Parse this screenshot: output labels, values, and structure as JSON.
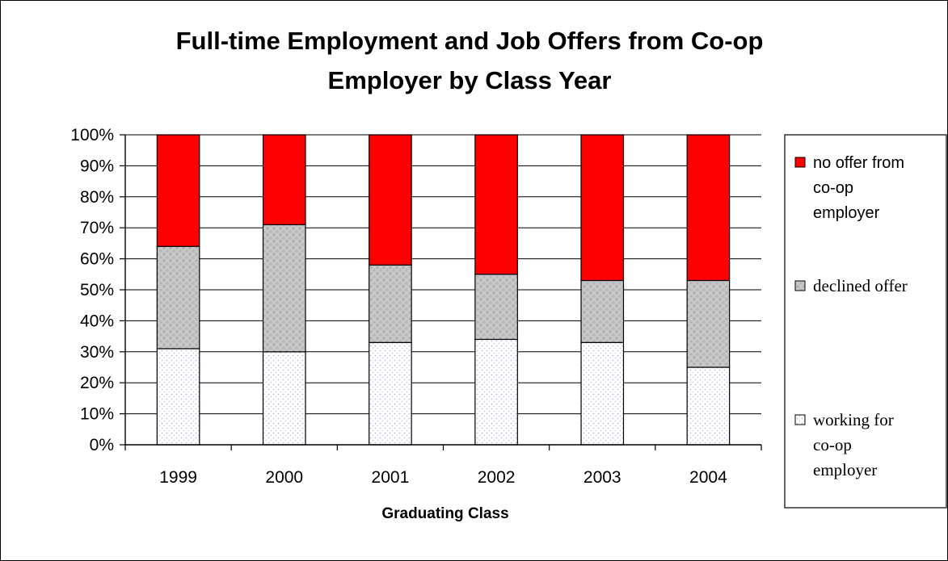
{
  "chart_data": {
    "type": "bar",
    "stacked": true,
    "title_lines": [
      "Full-time Employment and Job Offers from Co-op",
      "Employer by Class Year"
    ],
    "xlabel": "Graduating Class",
    "ylabel": "",
    "ylim": [
      0,
      100
    ],
    "y_ticks": [
      "0%",
      "10%",
      "20%",
      "30%",
      "40%",
      "50%",
      "60%",
      "70%",
      "80%",
      "90%",
      "100%"
    ],
    "categories": [
      "1999",
      "2000",
      "2001",
      "2002",
      "2003",
      "2004"
    ],
    "series": [
      {
        "name": "working for co-op employer",
        "legend_lines": [
          "working for",
          "co-op",
          "employer"
        ],
        "color": "#ffffff",
        "pattern": "dotted",
        "values": [
          31,
          30,
          33,
          34,
          33,
          25
        ]
      },
      {
        "name": "declined offer",
        "legend_lines": [
          "declined offer"
        ],
        "color": "#c0c0c0",
        "pattern": "textured",
        "values": [
          33,
          41,
          25,
          21,
          20,
          28
        ]
      },
      {
        "name": "no offer from co-op employer",
        "legend_lines": [
          "no offer from",
          "co-op",
          "employer"
        ],
        "color": "#ff0000",
        "pattern": "solid",
        "values": [
          36,
          29,
          42,
          45,
          47,
          47
        ]
      }
    ],
    "grid": true,
    "legend_position": "right"
  }
}
